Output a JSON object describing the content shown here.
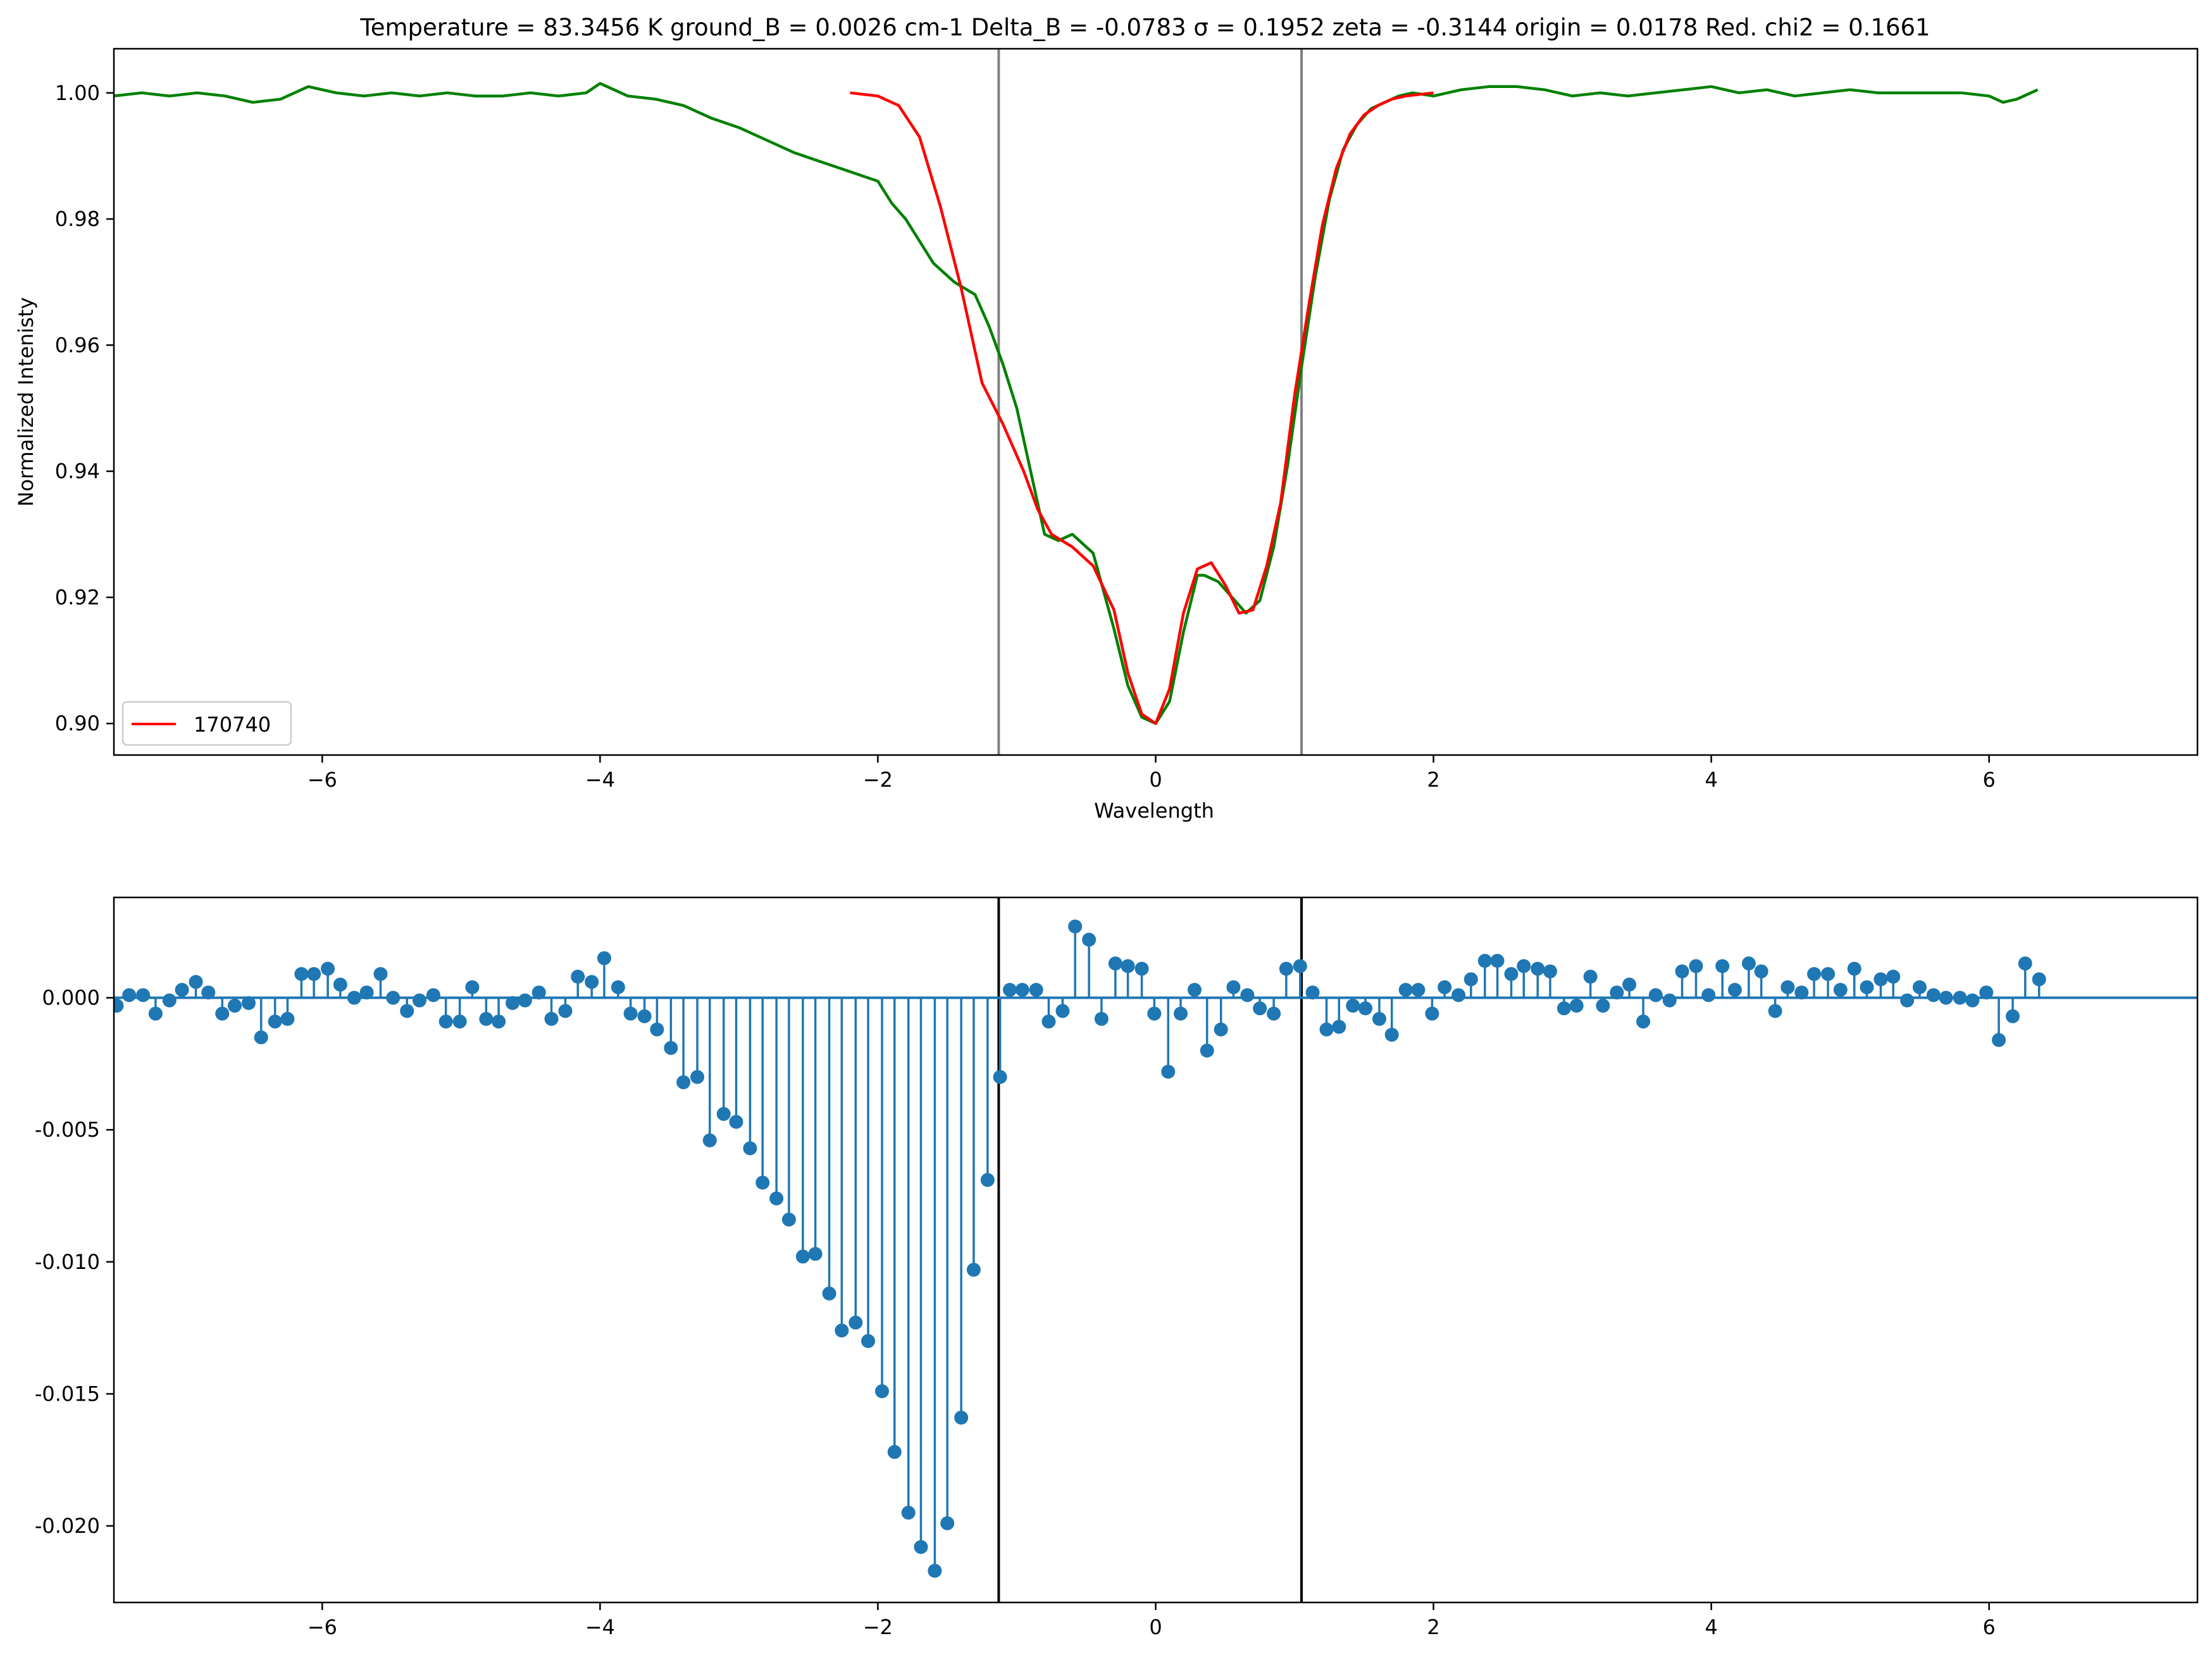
{
  "chart_data": [
    {
      "type": "line",
      "title": "Temperature = 83.3456  K  ground_B =  0.0026 cm-1  Delta_B = -0.0783    σ = 0.1952    zeta = -0.3144   origin = 0.0178   Red. chi2 = 0.1661",
      "xlabel": "Wavelength",
      "ylabel": "Normalized Intenisty",
      "xlim": [
        -7.5,
        7.5
      ],
      "ylim": [
        0.895,
        1.007
      ],
      "xticks": [
        -6,
        -4,
        -2,
        0,
        2,
        4,
        6
      ],
      "xtick_labels": [
        "−6",
        "−4",
        "−2",
        "0",
        "2",
        "4",
        "6"
      ],
      "yticks": [
        0.9,
        0.92,
        0.94,
        0.96,
        0.98,
        1.0
      ],
      "ytick_labels": [
        "0.90",
        "0.92",
        "0.94",
        "0.96",
        "0.98",
        "1.00"
      ],
      "vlines": [
        -1.13,
        1.05
      ],
      "vline_color": "#808080",
      "legend": {
        "position": "lower-left",
        "entries": [
          "170740"
        ]
      },
      "series": [
        {
          "color": "#008000",
          "x": [
            -7.5,
            -7.3,
            -7.1,
            -6.9,
            -6.7,
            -6.5,
            -6.3,
            -6.1,
            -5.9,
            -5.7,
            -5.5,
            -5.3,
            -5.1,
            -4.9,
            -4.7,
            -4.5,
            -4.3,
            -4.1,
            -4.0,
            -3.8,
            -3.6,
            -3.4,
            -3.2,
            -3.0,
            -2.8,
            -2.6,
            -2.4,
            -2.2,
            -2.0,
            -1.9,
            -1.8,
            -1.6,
            -1.45,
            -1.3,
            -1.2,
            -1.1,
            -1.0,
            -0.9,
            -0.8,
            -0.7,
            -0.6,
            -0.45,
            -0.3,
            -0.2,
            -0.1,
            0.0,
            0.1,
            0.2,
            0.3,
            0.35,
            0.45,
            0.55,
            0.65,
            0.75,
            0.85,
            0.95,
            1.05,
            1.15,
            1.25,
            1.35,
            1.45,
            1.55,
            1.65,
            1.75,
            1.85,
            2.0,
            2.2,
            2.4,
            2.6,
            2.8,
            3.0,
            3.2,
            3.4,
            3.6,
            3.8,
            4.0,
            4.2,
            4.4,
            4.6,
            4.8,
            5.0,
            5.2,
            5.4,
            5.6,
            5.8,
            6.0,
            6.1,
            6.2,
            6.35
          ],
          "y": [
            0.9995,
            1.0,
            0.9995,
            1.0,
            0.9995,
            0.9985,
            0.999,
            1.001,
            1.0,
            0.9995,
            1.0,
            0.9995,
            1.0,
            0.9995,
            0.9995,
            1.0,
            0.9995,
            1.0,
            1.0015,
            0.9995,
            0.999,
            0.998,
            0.996,
            0.9945,
            0.9925,
            0.9905,
            0.989,
            0.9875,
            0.986,
            0.9825,
            0.98,
            0.973,
            0.97,
            0.968,
            0.963,
            0.957,
            0.95,
            0.94,
            0.93,
            0.929,
            0.93,
            0.927,
            0.915,
            0.906,
            0.901,
            0.9,
            0.9035,
            0.9145,
            0.9235,
            0.9235,
            0.9225,
            0.92,
            0.9175,
            0.9195,
            0.928,
            0.941,
            0.9565,
            0.971,
            0.983,
            0.991,
            0.995,
            0.9975,
            0.9985,
            0.9995,
            1.0,
            0.9995,
            1.0005,
            1.001,
            1.001,
            1.0005,
            0.9995,
            1.0,
            0.9995,
            1.0,
            1.0005,
            1.001,
            1.0,
            1.0005,
            0.9995,
            1.0,
            1.0005,
            1.0,
            1.0,
            1.0,
            1.0,
            0.9995,
            0.9985,
            0.999,
            1.0005
          ]
        },
        {
          "name": "170740",
          "color": "#ff0000",
          "x": [
            -2.2,
            -2.0,
            -1.85,
            -1.7,
            -1.55,
            -1.4,
            -1.25,
            -1.1,
            -0.95,
            -0.85,
            -0.75,
            -0.6,
            -0.45,
            -0.3,
            -0.2,
            -0.1,
            0.0,
            0.1,
            0.2,
            0.3,
            0.4,
            0.5,
            0.6,
            0.7,
            0.8,
            0.9,
            1.0,
            1.1,
            1.2,
            1.3,
            1.4,
            1.5,
            1.6,
            1.7,
            1.8,
            2.0
          ],
          "y": [
            1.0,
            0.9995,
            0.998,
            0.993,
            0.982,
            0.969,
            0.954,
            0.9475,
            0.94,
            0.934,
            0.93,
            0.928,
            0.925,
            0.918,
            0.908,
            0.9015,
            0.9,
            0.9055,
            0.9175,
            0.9245,
            0.9255,
            0.922,
            0.9175,
            0.918,
            0.925,
            0.935,
            0.952,
            0.966,
            0.979,
            0.988,
            0.9935,
            0.9965,
            0.998,
            0.999,
            0.9995,
            1.0
          ]
        }
      ]
    },
    {
      "type": "stem",
      "title": "",
      "xlabel": "",
      "ylabel": "",
      "xlim": [
        -7.5,
        7.5
      ],
      "ylim": [
        -0.0229,
        0.0038
      ],
      "xticks": [
        -6,
        -4,
        -2,
        0,
        2,
        4,
        6
      ],
      "xtick_labels": [
        "−6",
        "−4",
        "−2",
        "0",
        "2",
        "4",
        "6"
      ],
      "yticks": [
        -0.02,
        -0.015,
        -0.01,
        -0.005,
        0.0
      ],
      "ytick_labels": [
        "-0.020",
        "-0.015",
        "-0.010",
        "-0.005",
        "0.000"
      ],
      "vlines": [
        -1.13,
        1.05
      ],
      "vline_color": "#000000",
      "baseline": 0.0,
      "series": [
        {
          "color": "#1f77b4",
          "x": [
            -7.48,
            -7.39,
            -7.29,
            -7.2,
            -7.1,
            -7.01,
            -6.91,
            -6.82,
            -6.72,
            -6.63,
            -6.53,
            -6.44,
            -6.34,
            -6.25,
            -6.15,
            -6.06,
            -5.96,
            -5.87,
            -5.77,
            -5.68,
            -5.58,
            -5.49,
            -5.39,
            -5.3,
            -5.2,
            -5.11,
            -5.01,
            -4.92,
            -4.82,
            -4.73,
            -4.63,
            -4.54,
            -4.44,
            -4.35,
            -4.25,
            -4.16,
            -4.06,
            -3.97,
            -3.87,
            -3.78,
            -3.68,
            -3.59,
            -3.49,
            -3.4,
            -3.3,
            -3.21,
            -3.11,
            -3.02,
            -2.92,
            -2.83,
            -2.73,
            -2.64,
            -2.54,
            -2.45,
            -2.35,
            -2.26,
            -2.16,
            -2.07,
            -1.97,
            -1.88,
            -1.78,
            -1.69,
            -1.59,
            -1.5,
            -1.4,
            -1.31,
            -1.21,
            -1.12,
            -1.05,
            -0.96,
            -0.86,
            -0.77,
            -0.67,
            -0.58,
            -0.48,
            -0.39,
            -0.29,
            -0.2,
            -0.1,
            -0.01,
            0.09,
            0.18,
            0.28,
            0.37,
            0.47,
            0.56,
            0.66,
            0.75,
            0.85,
            0.94,
            1.04,
            1.13,
            1.23,
            1.32,
            1.42,
            1.51,
            1.61,
            1.7,
            1.8,
            1.89,
            1.99,
            2.08,
            2.18,
            2.27,
            2.37,
            2.46,
            2.56,
            2.65,
            2.75,
            2.84,
            2.94,
            3.03,
            3.13,
            3.22,
            3.32,
            3.41,
            3.51,
            3.6,
            3.7,
            3.79,
            3.89,
            3.98,
            4.08,
            4.17,
            4.27,
            4.36,
            4.46,
            4.55,
            4.65,
            4.74,
            4.84,
            4.93,
            5.03,
            5.12,
            5.22,
            5.31,
            5.41,
            5.5,
            5.6,
            5.69,
            5.79,
            5.88,
            5.98,
            6.07,
            6.17,
            6.26,
            6.36
          ],
          "y": [
            -0.0003,
            0.0001,
            0.0001,
            -0.0006,
            -0.0001,
            0.0003,
            0.0006,
            0.0002,
            -0.0006,
            -0.0003,
            -0.0002,
            -0.0015,
            -0.0009,
            -0.0008,
            0.0009,
            0.0009,
            0.0011,
            0.0005,
            0.0,
            0.0002,
            0.0009,
            0.0,
            -0.0005,
            -0.0001,
            0.0001,
            -0.0009,
            -0.0009,
            0.0004,
            -0.0008,
            -0.0009,
            -0.0002,
            -0.0001,
            0.0002,
            -0.0008,
            -0.0005,
            0.0008,
            0.0006,
            0.0015,
            0.0004,
            -0.0006,
            -0.0007,
            -0.0012,
            -0.0019,
            -0.0032,
            -0.003,
            -0.0054,
            -0.0044,
            -0.0047,
            -0.0057,
            -0.007,
            -0.0076,
            -0.0084,
            -0.0098,
            -0.0097,
            -0.0112,
            -0.0126,
            -0.0123,
            -0.013,
            -0.0149,
            -0.0172,
            -0.0195,
            -0.0208,
            -0.0217,
            -0.0199,
            -0.0159,
            -0.0103,
            -0.0069,
            -0.003,
            0.0003,
            0.0003,
            0.0003,
            -0.0009,
            -0.0005,
            0.0027,
            0.0022,
            -0.0008,
            0.0013,
            0.0012,
            0.0011,
            -0.0006,
            -0.0028,
            -0.0006,
            0.0003,
            -0.002,
            -0.0012,
            0.0004,
            0.0001,
            -0.0004,
            -0.0006,
            0.0011,
            0.0012,
            0.0002,
            -0.0012,
            -0.0011,
            -0.0003,
            -0.0004,
            -0.0008,
            -0.0014,
            0.0003,
            0.0003,
            -0.0006,
            0.0004,
            0.0001,
            0.0007,
            0.0014,
            0.0014,
            0.0009,
            0.0012,
            0.0011,
            0.001,
            -0.0004,
            -0.0003,
            0.0008,
            -0.0003,
            0.0002,
            0.0005,
            -0.0009,
            0.0001,
            -0.0001,
            0.001,
            0.0012,
            0.0001,
            0.0012,
            0.0003,
            0.0013,
            0.001,
            -0.0005,
            0.0004,
            0.0002,
            0.0009,
            0.0009,
            0.0003,
            0.0011,
            0.0004,
            0.0007,
            0.0008,
            -0.0001,
            0.0004,
            0.0001,
            0.0,
            0.0,
            -0.0001,
            0.0002,
            -0.0016,
            -0.0007,
            0.0013,
            0.0007
          ]
        }
      ]
    }
  ]
}
